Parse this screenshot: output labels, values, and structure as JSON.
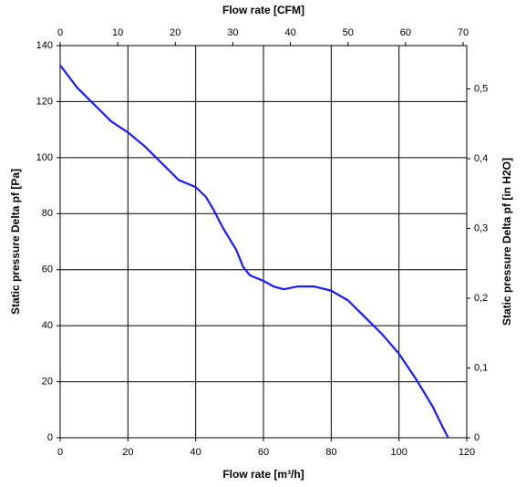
{
  "chart_data": {
    "type": "line",
    "xlabel": "Flow rate [m³/h]",
    "x2label": "Flow rate [CFM]",
    "ylabel": "Static pressure Delta pf [Pa]",
    "y2label": "Static pressure Delta pf [in H2O]",
    "x": [
      0,
      5,
      10,
      15,
      20,
      25,
      30,
      35,
      40,
      43,
      45,
      48,
      50,
      52,
      54,
      56,
      60,
      63,
      66,
      70,
      75,
      80,
      85,
      90,
      95,
      100,
      105,
      110,
      112,
      114.5
    ],
    "values": [
      133,
      125,
      119,
      113,
      109,
      104,
      98,
      92,
      89.5,
      86,
      82,
      75,
      71,
      67,
      61,
      58,
      56,
      54,
      53,
      54,
      54,
      52.5,
      49,
      43,
      37,
      30,
      21,
      11,
      6,
      0
    ],
    "color": "#1a1aff",
    "xlim": [
      0,
      120
    ],
    "xticks": [
      0,
      20,
      40,
      60,
      80,
      100,
      120
    ],
    "x2lim": [
      0,
      70.63
    ],
    "x2ticks": [
      0,
      10,
      20,
      30,
      40,
      50,
      60,
      70
    ],
    "ylim": [
      0,
      140
    ],
    "yticks": [
      0,
      20,
      40,
      60,
      80,
      100,
      120,
      140
    ],
    "y2lim": [
      0,
      0.562
    ],
    "y2ticks": [
      0,
      {
        "value": 0.1,
        "label": "0,1"
      },
      {
        "value": 0.2,
        "label": "0,2"
      },
      {
        "value": 0.3,
        "label": "0,3"
      },
      {
        "value": 0.4,
        "label": "0,4"
      },
      {
        "value": 0.5,
        "label": "0,5"
      }
    ],
    "grid": true
  }
}
